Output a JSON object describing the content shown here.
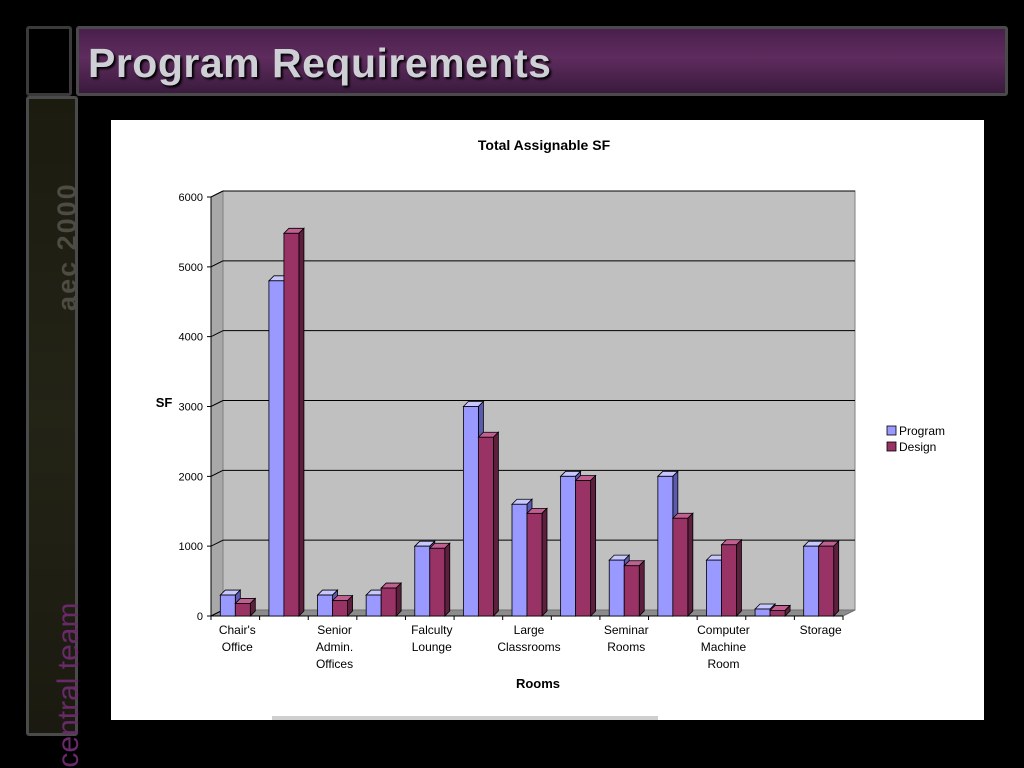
{
  "slide": {
    "title": "Program Requirements",
    "side_top_text": "aec 2000",
    "side_bottom_text": "central team",
    "colors": {
      "title_bg": "#4a1f4c",
      "side_bottom_text": "#6a2a6a",
      "side_top_text": "#4c4c44"
    }
  },
  "chart_data": {
    "type": "bar",
    "title": "Total Assignable SF",
    "xlabel": "Rooms",
    "ylabel": "SF",
    "ylim": [
      0,
      6000
    ],
    "yticks": [
      0,
      1000,
      2000,
      3000,
      4000,
      5000,
      6000
    ],
    "grid": true,
    "legend_position": "right",
    "categories": [
      "Chair's Office",
      "",
      "Senior Admin. Offices",
      "",
      "Falculty Lounge",
      "",
      "Large Classrooms",
      "",
      "Seminar Rooms",
      "",
      "Computer Machine Room",
      "",
      "Storage"
    ],
    "category_label_lines": [
      [
        "Chair's",
        "Office"
      ],
      [],
      [
        "Senior",
        "Admin.",
        "Offices"
      ],
      [],
      [
        "Falculty",
        "Lounge"
      ],
      [],
      [
        "Large",
        "Classrooms"
      ],
      [],
      [
        "Seminar",
        "Rooms"
      ],
      [],
      [
        "Computer",
        "Machine",
        "Room"
      ],
      [],
      [
        "Storage"
      ]
    ],
    "series": [
      {
        "name": "Program",
        "color": "#9999ff",
        "values": [
          300,
          4800,
          300,
          300,
          1000,
          3000,
          1600,
          2000,
          800,
          2000,
          800,
          100,
          1000
        ]
      },
      {
        "name": "Design",
        "color": "#993366",
        "values": [
          180,
          5480,
          220,
          400,
          970,
          2560,
          1470,
          1940,
          720,
          1400,
          1020,
          80,
          1000
        ]
      }
    ]
  }
}
